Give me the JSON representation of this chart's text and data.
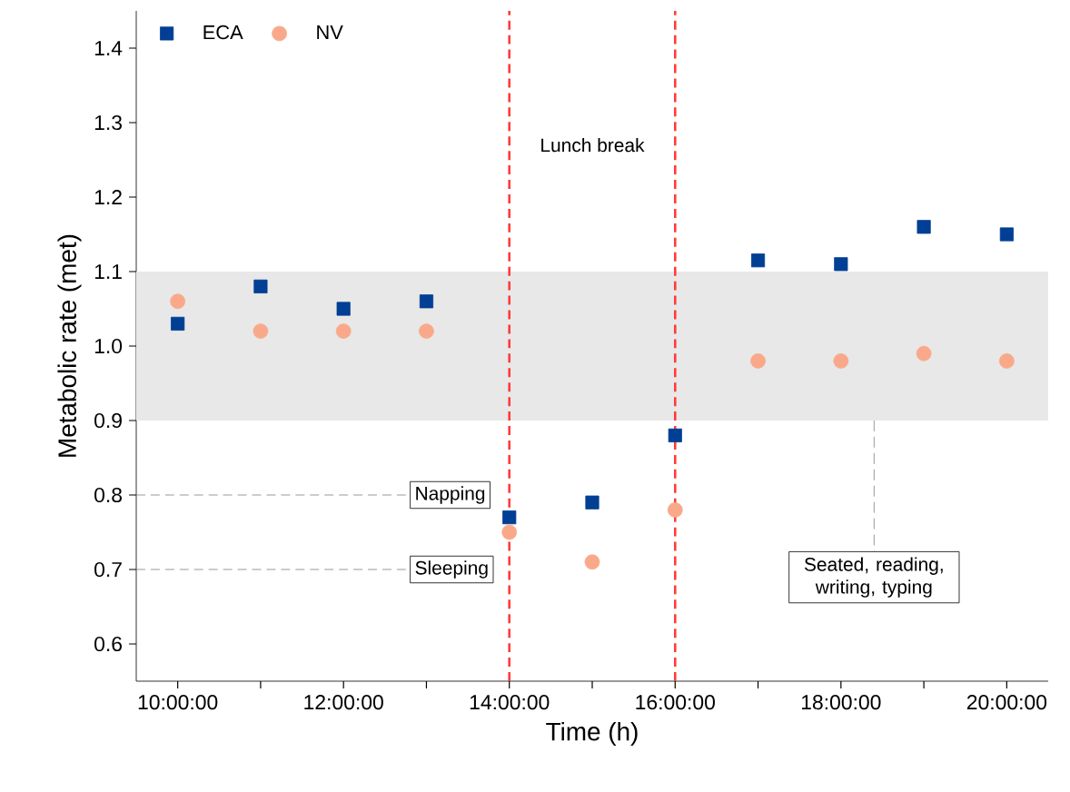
{
  "chart_data": {
    "type": "scatter",
    "xlabel": "Time (h)",
    "ylabel": "Metabolic rate (met)",
    "x": [
      10,
      11,
      12,
      13,
      14,
      15,
      16,
      17,
      18,
      19,
      20
    ],
    "series": [
      {
        "name": "ECA",
        "color": "#003f94",
        "marker": "square",
        "values": [
          1.03,
          1.08,
          1.05,
          1.06,
          0.77,
          0.79,
          0.88,
          1.115,
          1.11,
          1.16,
          1.15
        ]
      },
      {
        "name": "NV",
        "color": "#f9a98a",
        "marker": "circle",
        "values": [
          1.06,
          1.02,
          1.02,
          1.02,
          0.75,
          0.71,
          0.78,
          0.98,
          0.98,
          0.99,
          0.98
        ]
      }
    ],
    "xlim": [
      9.5,
      20.5
    ],
    "ylim": [
      0.55,
      1.45
    ],
    "xticks": [
      {
        "value": 10,
        "label": "10:00:00"
      },
      {
        "value": 11,
        "label": null
      },
      {
        "value": 12,
        "label": "12:00:00"
      },
      {
        "value": 13,
        "label": null
      },
      {
        "value": 14,
        "label": "14:00:00"
      },
      {
        "value": 15,
        "label": null
      },
      {
        "value": 16,
        "label": "16:00:00"
      },
      {
        "value": 17,
        "label": null
      },
      {
        "value": 18,
        "label": "18:00:00"
      },
      {
        "value": 19,
        "label": null
      },
      {
        "value": 20,
        "label": "20:00:00"
      }
    ],
    "yticks": [
      0.6,
      0.7,
      0.8,
      0.9,
      {
        "value": 1.0,
        "label": "1.0"
      },
      1.1,
      1.2,
      1.3,
      1.4
    ],
    "bands": [
      {
        "axis": "y",
        "from": 0.9,
        "to": 1.1,
        "color": "#e8e8e8"
      }
    ],
    "ref_lines": [
      {
        "axis": "x",
        "value": 14,
        "color": "#ff3b3b",
        "line_style": "dashed"
      },
      {
        "axis": "x",
        "value": 16,
        "color": "#ff3b3b",
        "line_style": "dashed"
      },
      {
        "axis": "y",
        "value": 0.8,
        "label": "Napping",
        "color": "#808080",
        "line_style": "dashed"
      },
      {
        "axis": "y",
        "value": 0.7,
        "label": "Sleeping",
        "color": "#808080",
        "line_style": "dashed"
      }
    ],
    "annotations": [
      "Lunch break",
      {
        "text": "Seated, reading, writing, typing",
        "x": 18.4,
        "y": 0.9
      }
    ],
    "legend": "top left",
    "grid": false
  }
}
